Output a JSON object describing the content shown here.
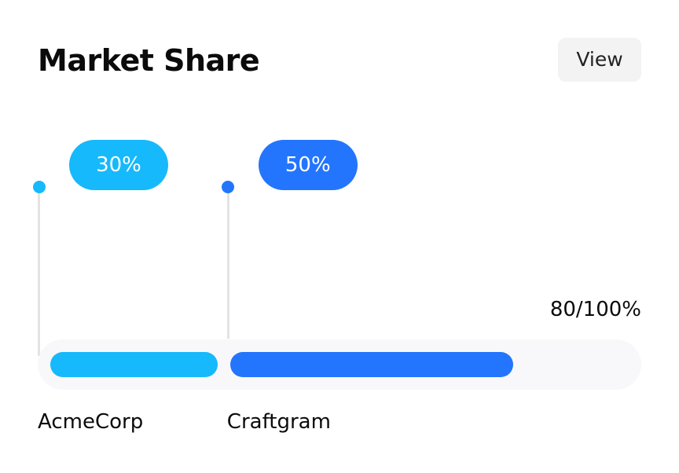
{
  "header": {
    "title": "Market Share",
    "view_label": "View"
  },
  "summary": {
    "total_label": "80/100%"
  },
  "colors": {
    "acmecorp": "#16b9fb",
    "craftgram": "#2375fd",
    "track": "#f8f8fa",
    "view_button_bg": "#f3f3f3"
  },
  "chart_data": {
    "type": "bar",
    "orientation": "horizontal-stacked",
    "categories": [
      "AcmeCorp",
      "Craftgram"
    ],
    "values": [
      30,
      50
    ],
    "value_labels": [
      "30%",
      "50%"
    ],
    "total": 80,
    "max": 100,
    "xlim": [
      0,
      100
    ],
    "grid": false,
    "title": "Market Share"
  }
}
